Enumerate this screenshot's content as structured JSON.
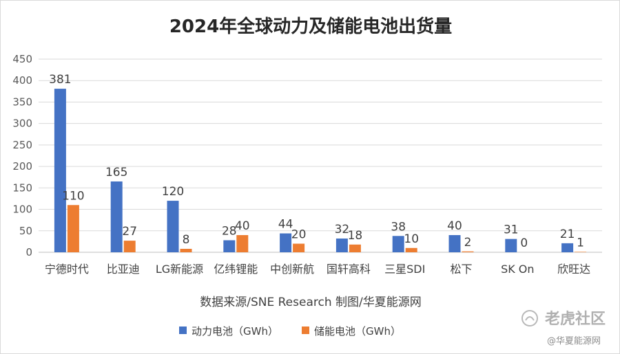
{
  "chart_data": {
    "type": "bar",
    "title": "2024年全球动力及储能电池出货量",
    "categories": [
      "宁德时代",
      "比亚迪",
      "LG新能源",
      "亿纬锂能",
      "中创新航",
      "国轩高科",
      "三星SDI",
      "松下",
      "SK On",
      "欣旺达"
    ],
    "series": [
      {
        "name": "动力电池（GWh）",
        "color": "#4472C4",
        "values": [
          381,
          165,
          120,
          28,
          44,
          32,
          38,
          40,
          31,
          21
        ]
      },
      {
        "name": "储能电池（GWh）",
        "color": "#ED7D31",
        "values": [
          110,
          27,
          8,
          40,
          20,
          18,
          10,
          2,
          0,
          1
        ]
      }
    ],
    "ylim": [
      0,
      450
    ],
    "yticks": [
      0,
      50,
      100,
      150,
      200,
      250,
      300,
      350,
      400,
      450
    ],
    "xlabel": "数据来源/SNE Research  制图/华夏能源网",
    "ylabel": "",
    "grid": true,
    "legend_position": "bottom"
  },
  "watermark": {
    "brand": "老虎社区",
    "credit": "@华夏能源网"
  }
}
